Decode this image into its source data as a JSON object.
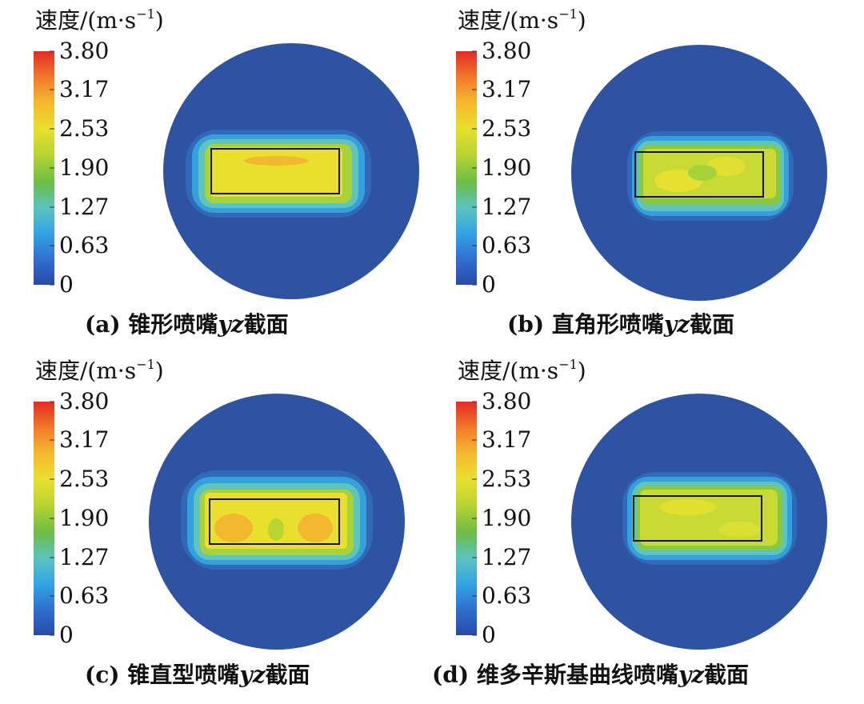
{
  "colorbar": {
    "label_text": "速度/(m·s",
    "label_exp": "−1",
    "label_close": ")",
    "ticks": [
      "3.80",
      "3.17",
      "2.53",
      "1.90",
      "1.27",
      "0.63",
      "0"
    ],
    "min": 0,
    "max": 3.8,
    "colors": [
      "#2a4aa8",
      "#2f6fd0",
      "#32a4e4",
      "#5cc3c0",
      "#6cbd45",
      "#b9d433",
      "#eadf2e",
      "#f4b82e",
      "#f0792a",
      "#e42a25"
    ]
  },
  "panels": [
    {
      "id": "a",
      "prefix": "(a) ",
      "name": "锥形喷嘴",
      "axes": "yz",
      "suffix": "截面"
    },
    {
      "id": "b",
      "prefix": "(b) ",
      "name": "直角形喷嘴",
      "axes": "yz",
      "suffix": "截面"
    },
    {
      "id": "c",
      "prefix": "(c) ",
      "name": "锥直型喷嘴",
      "axes": "yz",
      "suffix": "截面"
    },
    {
      "id": "d",
      "prefix": "(d) ",
      "name": "维多辛斯基曲线喷嘴",
      "axes": "yz",
      "suffix": "截面"
    }
  ]
}
